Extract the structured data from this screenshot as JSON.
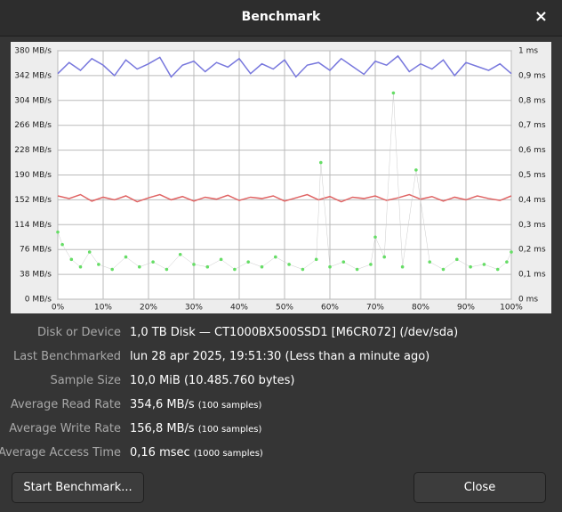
{
  "dialog": {
    "title": "Benchmark",
    "close_icon": "×"
  },
  "chart_data": {
    "type": "line",
    "x": [
      0,
      2.5,
      5,
      7.5,
      10,
      12.5,
      15,
      17.5,
      20,
      22.5,
      25,
      27.5,
      30,
      32.5,
      35,
      37.5,
      40,
      42.5,
      45,
      47.5,
      50,
      52.5,
      55,
      57.5,
      60,
      62.5,
      65,
      67.5,
      70,
      72.5,
      75,
      77.5,
      80,
      82.5,
      85,
      87.5,
      90,
      92.5,
      95,
      97.5,
      100
    ],
    "series": [
      {
        "name": "Read",
        "color": "#7777dd",
        "values": [
          345,
          362,
          350,
          368,
          358,
          342,
          366,
          352,
          360,
          370,
          340,
          358,
          364,
          348,
          362,
          355,
          368,
          345,
          360,
          352,
          366,
          340,
          358,
          362,
          350,
          368,
          356,
          344,
          364,
          358,
          372,
          348,
          360,
          352,
          366,
          342,
          362,
          356,
          350,
          360,
          345
        ]
      },
      {
        "name": "Write",
        "color": "#e06464",
        "values": [
          158,
          154,
          160,
          150,
          156,
          152,
          158,
          149,
          155,
          160,
          152,
          157,
          150,
          156,
          153,
          159,
          151,
          156,
          154,
          158,
          150,
          155,
          160,
          152,
          157,
          149,
          156,
          154,
          158,
          151,
          155,
          160,
          153,
          157,
          150,
          156,
          152,
          158,
          154,
          151,
          158
        ]
      },
      {
        "name": "Access Time",
        "color": "#66dd66",
        "axis": "y2",
        "x": [
          0,
          1,
          3,
          5,
          7,
          9,
          12,
          15,
          18,
          21,
          24,
          27,
          30,
          33,
          36,
          39,
          42,
          45,
          48,
          51,
          54,
          57,
          58,
          60,
          63,
          66,
          69,
          70,
          72,
          74,
          76,
          79,
          82,
          85,
          88,
          91,
          94,
          97,
          99,
          100
        ],
        "values": [
          0.27,
          0.22,
          0.16,
          0.13,
          0.19,
          0.14,
          0.12,
          0.17,
          0.13,
          0.15,
          0.12,
          0.18,
          0.14,
          0.13,
          0.16,
          0.12,
          0.15,
          0.13,
          0.17,
          0.14,
          0.12,
          0.16,
          0.55,
          0.13,
          0.15,
          0.12,
          0.14,
          0.25,
          0.17,
          0.83,
          0.13,
          0.52,
          0.15,
          0.12,
          0.16,
          0.13,
          0.14,
          0.12,
          0.15,
          0.19
        ]
      }
    ],
    "xlim": [
      0,
      100
    ],
    "xticks": [
      {
        "value": 0,
        "label": "0%"
      },
      {
        "value": 10,
        "label": "10%"
      },
      {
        "value": 20,
        "label": "20%"
      },
      {
        "value": 30,
        "label": "30%"
      },
      {
        "value": 40,
        "label": "40%"
      },
      {
        "value": 50,
        "label": "50%"
      },
      {
        "value": 60,
        "label": "60%"
      },
      {
        "value": 70,
        "label": "70%"
      },
      {
        "value": 80,
        "label": "80%"
      },
      {
        "value": 90,
        "label": "90%"
      },
      {
        "value": 100,
        "label": "100%"
      }
    ],
    "ylim": [
      0,
      380
    ],
    "yticks": [
      {
        "value": 0,
        "label": "0 MB/s"
      },
      {
        "value": 38,
        "label": "38 MB/s"
      },
      {
        "value": 76,
        "label": "76 MB/s"
      },
      {
        "value": 114,
        "label": "114 MB/s"
      },
      {
        "value": 152,
        "label": "152 MB/s"
      },
      {
        "value": 190,
        "label": "190 MB/s"
      },
      {
        "value": 228,
        "label": "228 MB/s"
      },
      {
        "value": 266,
        "label": "266 MB/s"
      },
      {
        "value": 304,
        "label": "304 MB/s"
      },
      {
        "value": 342,
        "label": "342 MB/s"
      },
      {
        "value": 380,
        "label": "380 MB/s"
      }
    ],
    "y2lim": [
      0,
      1
    ],
    "y2ticks": [
      {
        "value": 0,
        "label": "0 ms"
      },
      {
        "value": 0.1,
        "label": "0,1 ms"
      },
      {
        "value": 0.2,
        "label": "0,2 ms"
      },
      {
        "value": 0.3,
        "label": "0,3 ms"
      },
      {
        "value": 0.4,
        "label": "0,4 ms"
      },
      {
        "value": 0.5,
        "label": "0,5 ms"
      },
      {
        "value": 0.6,
        "label": "0,6 ms"
      },
      {
        "value": 0.7,
        "label": "0,7 ms"
      },
      {
        "value": 0.8,
        "label": "0,8 ms"
      },
      {
        "value": 0.9,
        "label": "0,9 ms"
      },
      {
        "value": 1,
        "label": "1 ms"
      }
    ],
    "grid": true
  },
  "info": [
    {
      "label": "Disk or Device",
      "value": "1,0 TB Disk — CT1000BX500SSD1 [M6CR072] (/dev/sda)"
    },
    {
      "label": "Last Benchmarked",
      "value": "lun 28 apr 2025, 19:51:30 (Less than a minute ago)"
    },
    {
      "label": "Sample Size",
      "value": "10,0 MiB (10.485.760 bytes)"
    },
    {
      "label": "Average Read Rate",
      "value": "354,6 MB/s",
      "note": "(100 samples)"
    },
    {
      "label": "Average Write Rate",
      "value": "156,8 MB/s",
      "note": "(100 samples)"
    },
    {
      "label": "Average Access Time",
      "value": "0,16 msec",
      "note": "(1000 samples)"
    }
  ],
  "buttons": {
    "start": "Start Benchmark...",
    "close": "Close"
  }
}
